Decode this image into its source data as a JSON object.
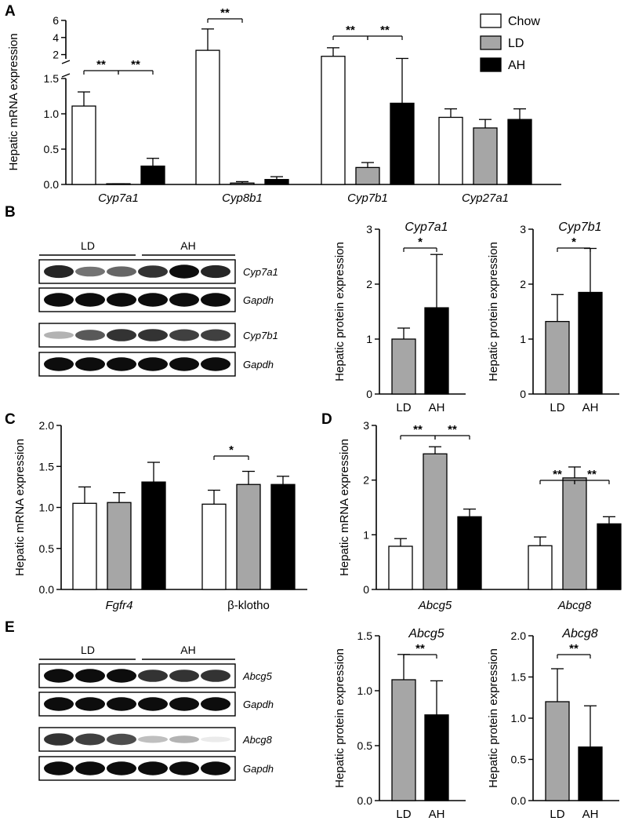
{
  "panels": {
    "A": "A",
    "B": "B",
    "C": "C",
    "D": "D",
    "E": "E"
  },
  "legend": [
    {
      "label": "Chow",
      "color": "#ffffff"
    },
    {
      "label": "LD",
      "color": "#a6a6a6"
    },
    {
      "label": "AH",
      "color": "#000000"
    }
  ],
  "colors": {
    "Chow": "#ffffff",
    "LD": "#a6a6a6",
    "AH": "#000000"
  },
  "blots": {
    "B": {
      "groups": [
        "LD",
        "AH"
      ],
      "strips": [
        {
          "label": "Cyp7a1",
          "pattern": [
            0.85,
            0.55,
            0.6,
            0.8,
            0.95,
            0.85
          ]
        },
        {
          "label": "Gapdh",
          "pattern": [
            0.95,
            0.95,
            0.95,
            0.95,
            0.95,
            0.95
          ]
        },
        {
          "label": "Cyp7b1",
          "pattern": [
            0.3,
            0.65,
            0.8,
            0.8,
            0.75,
            0.75
          ]
        },
        {
          "label": "Gapdh",
          "pattern": [
            0.95,
            0.95,
            0.95,
            0.95,
            0.95,
            0.95
          ]
        }
      ]
    },
    "E": {
      "groups": [
        "LD",
        "AH"
      ],
      "strips": [
        {
          "label": "Abcg5",
          "pattern": [
            0.95,
            0.95,
            0.95,
            0.8,
            0.8,
            0.8
          ]
        },
        {
          "label": "Gapdh",
          "pattern": [
            0.95,
            0.95,
            0.95,
            0.95,
            0.95,
            0.95
          ]
        },
        {
          "label": "Abcg8",
          "pattern": [
            0.8,
            0.75,
            0.7,
            0.25,
            0.3,
            0.08
          ]
        },
        {
          "label": "Gapdh",
          "pattern": [
            0.95,
            0.95,
            0.95,
            0.95,
            0.95,
            0.95
          ]
        }
      ]
    }
  },
  "chart_data": [
    {
      "id": "A",
      "type": "bar",
      "broken_axis": true,
      "ylabel": "Hepatic mRNA expression",
      "categories": [
        "Cyp7a1",
        "Cyp8b1",
        "Cyp7b1",
        "Cyp27a1"
      ],
      "ylim_lower": [
        0,
        1.5
      ],
      "yticks_lower": [
        "0.0",
        "0.5",
        "1.0",
        "1.5"
      ],
      "ylim_upper": [
        1.5,
        6
      ],
      "yticks_upper": [
        "2",
        "4",
        "6"
      ],
      "series": [
        {
          "name": "Chow",
          "values": [
            1.11,
            2.5,
            1.8,
            0.95
          ],
          "errors": [
            0.2,
            2.5,
            1.0,
            0.12
          ]
        },
        {
          "name": "LD",
          "values": [
            0.01,
            0.02,
            0.24,
            0.8
          ],
          "errors": [
            0.0,
            0.02,
            0.07,
            0.12
          ]
        },
        {
          "name": "AH",
          "values": [
            0.26,
            0.07,
            1.15,
            0.92
          ],
          "errors": [
            0.11,
            0.04,
            0.4,
            0.15
          ]
        }
      ],
      "significance": [
        {
          "cat": 0,
          "from": 0,
          "to": 1,
          "label": "**"
        },
        {
          "cat": 0,
          "from": 1,
          "to": 2,
          "label": "**"
        },
        {
          "cat": 1,
          "from": 0,
          "to": 1,
          "label": "**"
        },
        {
          "cat": 2,
          "from": 0,
          "to": 1,
          "label": "**"
        },
        {
          "cat": 2,
          "from": 1,
          "to": 2,
          "label": "**"
        }
      ]
    },
    {
      "id": "B1",
      "type": "bar",
      "title": "Cyp7a1",
      "ylabel": "Hepatic  protein  expression",
      "categories": [
        "LD",
        "AH"
      ],
      "values": [
        1.0,
        1.57
      ],
      "errors": [
        0.2,
        0.97
      ],
      "ylim": [
        0,
        3
      ],
      "yticks": [
        "0",
        "1",
        "2",
        "3"
      ],
      "significance": [
        {
          "from": 0,
          "to": 1,
          "label": "*"
        }
      ]
    },
    {
      "id": "B2",
      "type": "bar",
      "title": "Cyp7b1",
      "ylabel": "Hepatic  protein  expression",
      "categories": [
        "LD",
        "AH"
      ],
      "values": [
        1.32,
        1.85
      ],
      "errors": [
        0.49,
        0.8
      ],
      "ylim": [
        0,
        3
      ],
      "yticks": [
        "0",
        "1",
        "2",
        "3"
      ],
      "significance": [
        {
          "from": 0,
          "to": 1,
          "label": "*"
        }
      ]
    },
    {
      "id": "C",
      "type": "bar",
      "ylabel": "Hepatic mRNA expression",
      "categories": [
        "Fgfr4",
        "β-klotho"
      ],
      "ylim": [
        0,
        2.0
      ],
      "yticks": [
        "0.0",
        "0.5",
        "1.0",
        "1.5",
        "2.0"
      ],
      "series": [
        {
          "name": "Chow",
          "values": [
            1.05,
            1.04
          ],
          "errors": [
            0.2,
            0.17
          ]
        },
        {
          "name": "LD",
          "values": [
            1.06,
            1.28
          ],
          "errors": [
            0.12,
            0.16
          ]
        },
        {
          "name": "AH",
          "values": [
            1.31,
            1.28
          ],
          "errors": [
            0.24,
            0.1
          ]
        }
      ],
      "significance": [
        {
          "cat": 1,
          "from": 0,
          "to": 1,
          "label": "*"
        }
      ]
    },
    {
      "id": "D",
      "type": "bar",
      "ylabel": "Hepatic mRNA expression",
      "categories": [
        "Abcg5",
        "Abcg8"
      ],
      "ylim": [
        0,
        3
      ],
      "yticks": [
        "0",
        "1",
        "2",
        "3"
      ],
      "series": [
        {
          "name": "Chow",
          "values": [
            0.79,
            0.8
          ],
          "errors": [
            0.14,
            0.16
          ]
        },
        {
          "name": "LD",
          "values": [
            2.48,
            2.04
          ],
          "errors": [
            0.13,
            0.2
          ]
        },
        {
          "name": "AH",
          "values": [
            1.33,
            1.2
          ],
          "errors": [
            0.14,
            0.13
          ]
        }
      ],
      "significance": [
        {
          "cat": 0,
          "from": 0,
          "to": 1,
          "label": "**"
        },
        {
          "cat": 0,
          "from": 1,
          "to": 2,
          "label": "**"
        },
        {
          "cat": 1,
          "from": 0,
          "to": 1,
          "label": "**"
        },
        {
          "cat": 1,
          "from": 1,
          "to": 2,
          "label": "**"
        }
      ]
    },
    {
      "id": "E1",
      "type": "bar",
      "title": "Abcg5",
      "ylabel": "Hepatic  protein  expression",
      "categories": [
        "LD",
        "AH"
      ],
      "values": [
        1.1,
        0.78
      ],
      "errors": [
        0.23,
        0.31
      ],
      "ylim": [
        0,
        1.5
      ],
      "yticks": [
        "0.0",
        "0.5",
        "1.0",
        "1.5"
      ],
      "significance": [
        {
          "from": 0,
          "to": 1,
          "label": "**"
        }
      ]
    },
    {
      "id": "E2",
      "type": "bar",
      "title": "Abcg8",
      "ylabel": "Hepatic  protein  expression",
      "categories": [
        "LD",
        "AH"
      ],
      "values": [
        1.2,
        0.65
      ],
      "errors": [
        0.4,
        0.5
      ],
      "ylim": [
        0,
        2.0
      ],
      "yticks": [
        "0.0",
        "0.5",
        "1.0",
        "1.5",
        "2.0"
      ],
      "significance": [
        {
          "from": 0,
          "to": 1,
          "label": "**"
        }
      ]
    }
  ]
}
